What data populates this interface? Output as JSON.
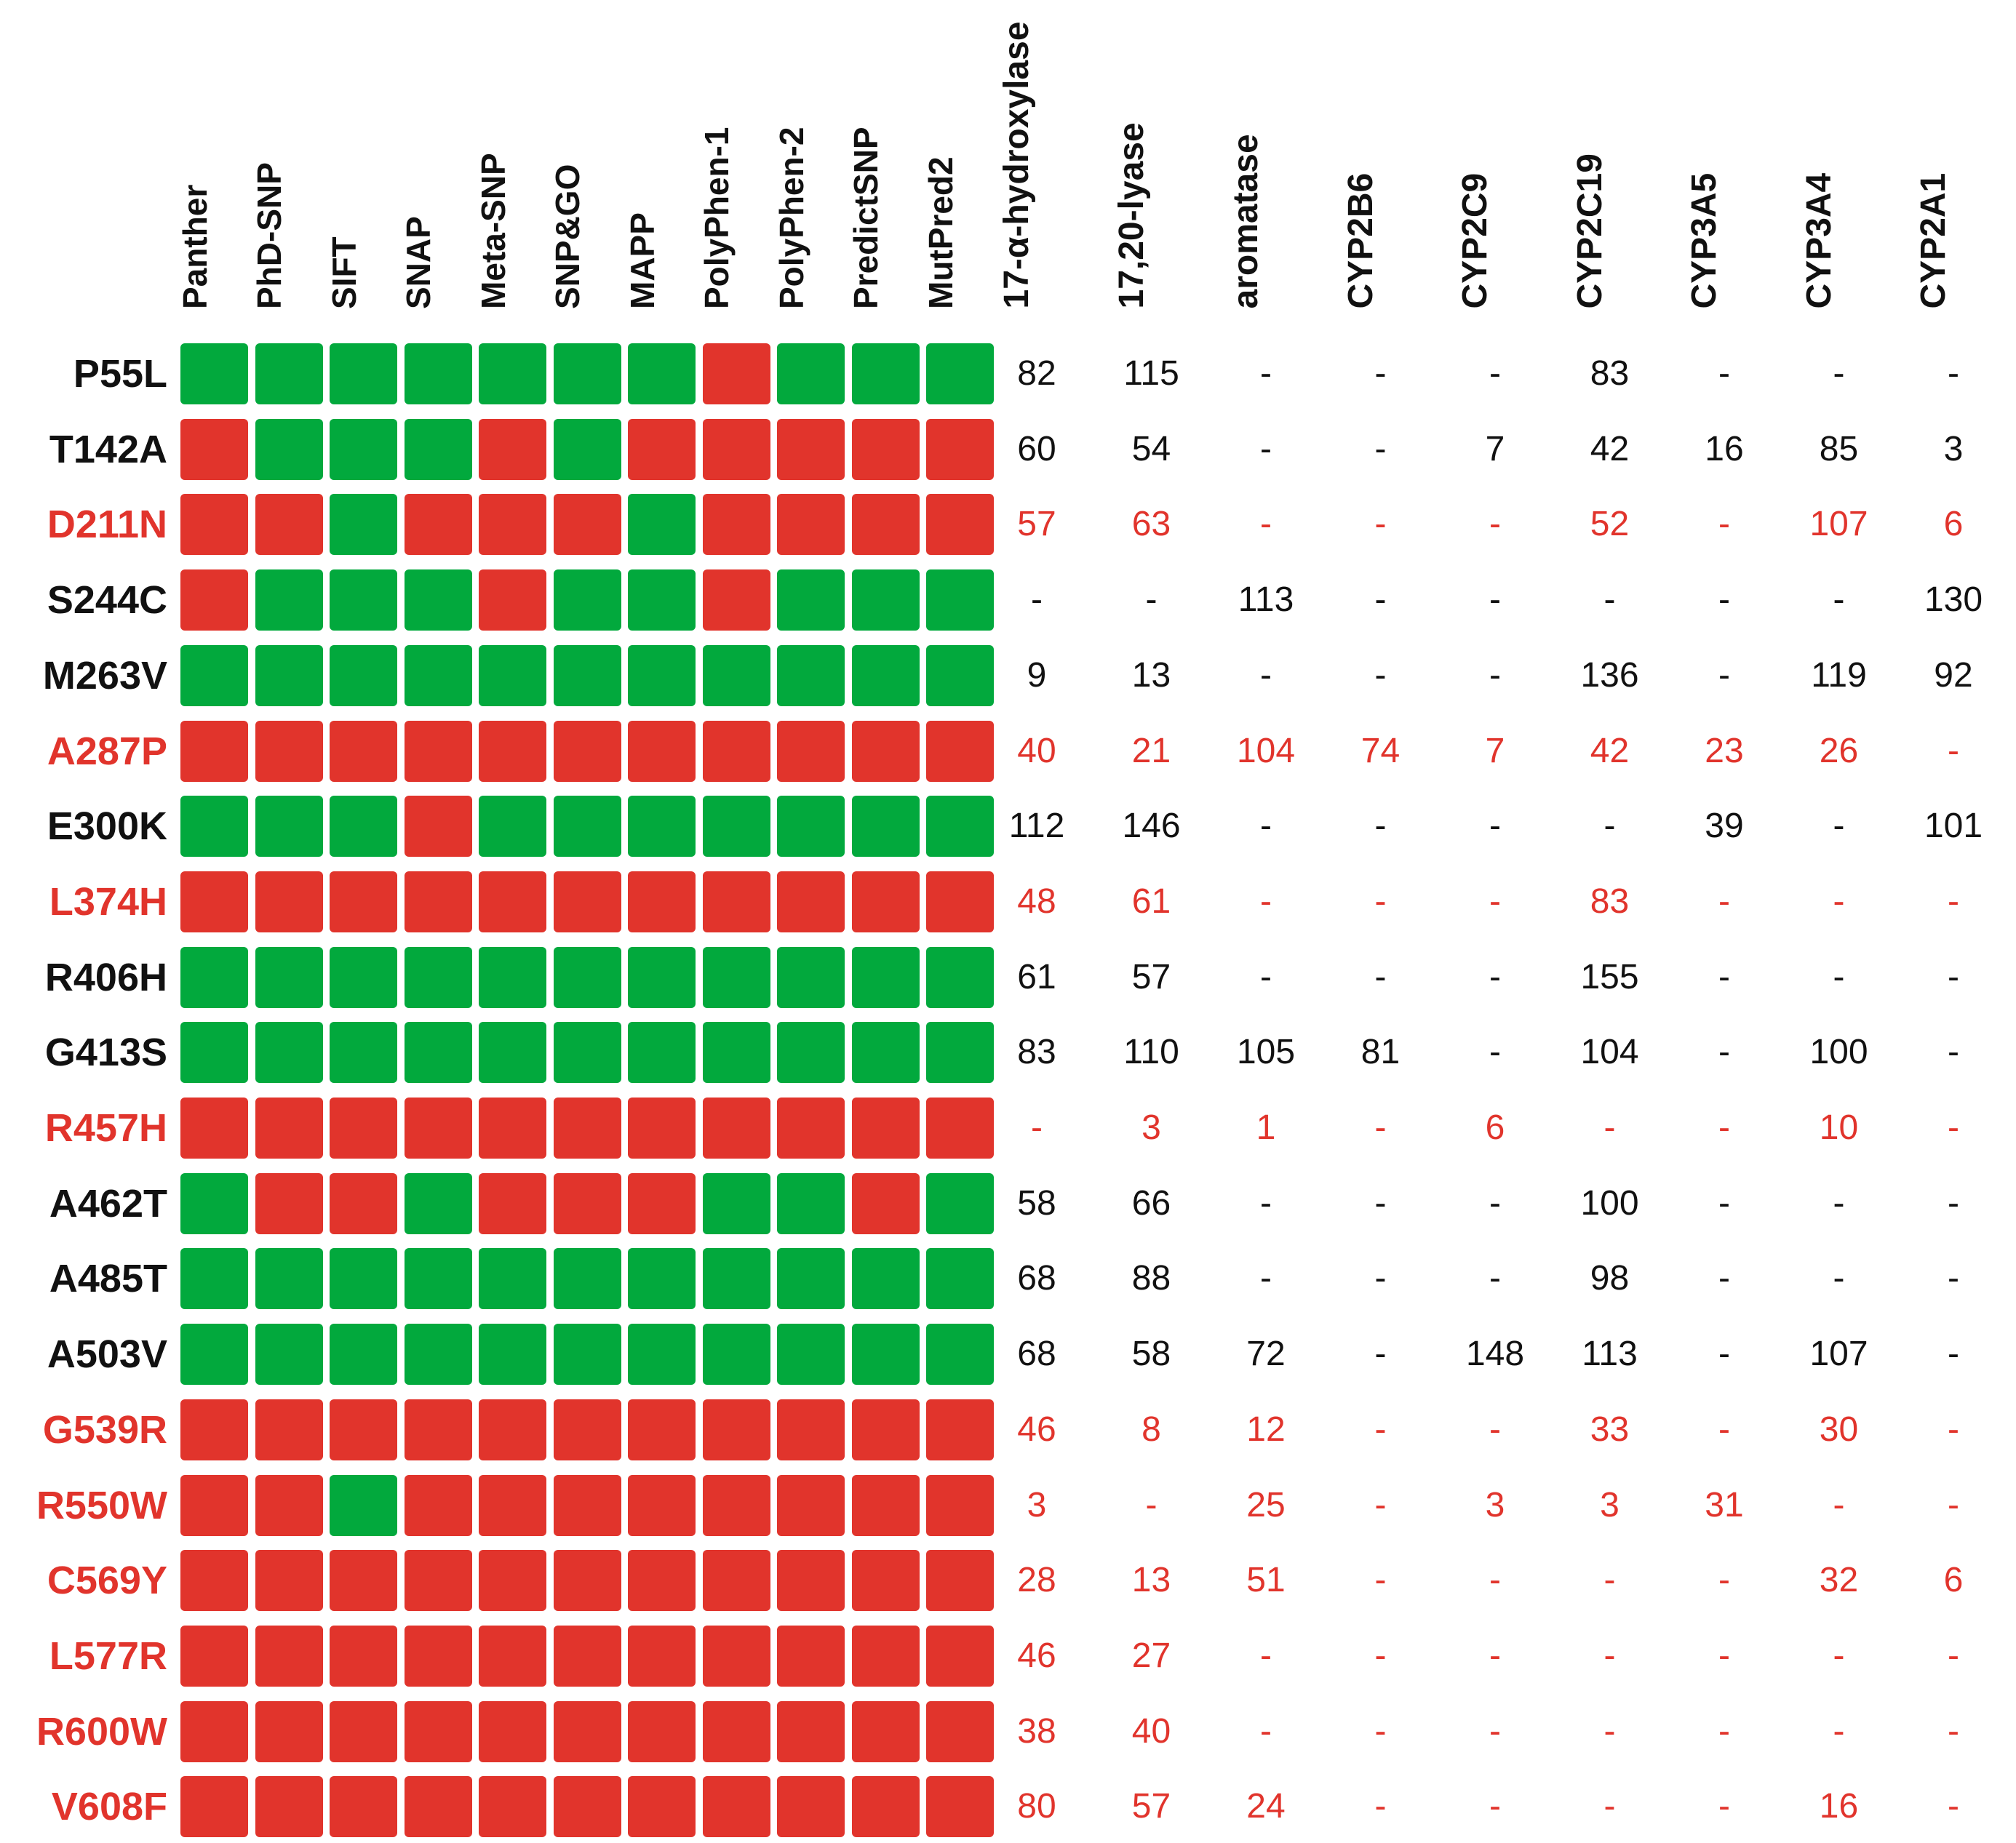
{
  "colors": {
    "deleterious": "#e1342c",
    "neutral": "#02a93d",
    "text": "#111111"
  },
  "predictors": [
    "Panther",
    "PhD-SNP",
    "SIFT",
    "SNAP",
    "Meta-SNP",
    "SNP&GO",
    "MAPP",
    "PolyPhen-1",
    "PolyPhen-2",
    "PredictSNP",
    "MutPred2"
  ],
  "activities": [
    "17-α-hydroxylase",
    "17,20-lyase",
    "aromatase",
    "CYP2B6",
    "CYP2C9",
    "CYP2C19",
    "CYP3A5",
    "CYP3A4",
    "CYP2A1"
  ],
  "rows": [
    {
      "label": "P55L",
      "red": false,
      "preds": "GGGGGGGRGGG",
      "values": [
        "82",
        "115",
        "-",
        "-",
        "-",
        "83",
        "-",
        "-",
        "-"
      ]
    },
    {
      "label": "T142A",
      "red": false,
      "preds": "RGGGRGRRRRR",
      "values": [
        "60",
        "54",
        "-",
        "-",
        "7",
        "42",
        "16",
        "85",
        "3"
      ]
    },
    {
      "label": "D211N",
      "red": true,
      "preds": "RRGRRRGRRRR",
      "values": [
        "57",
        "63",
        "-",
        "-",
        "-",
        "52",
        "-",
        "107",
        "6"
      ]
    },
    {
      "label": "S244C",
      "red": false,
      "preds": "RGGGRGGRGGG",
      "values": [
        "-",
        "-",
        "113",
        "-",
        "-",
        "-",
        "-",
        "-",
        "130"
      ]
    },
    {
      "label": "M263V",
      "red": false,
      "preds": "GGGGGGGGGGG",
      "values": [
        "9",
        "13",
        "-",
        "-",
        "-",
        "136",
        "-",
        "119",
        "92"
      ]
    },
    {
      "label": "A287P",
      "red": true,
      "preds": "RRRRRRRRRRR",
      "values": [
        "40",
        "21",
        "104",
        "74",
        "7",
        "42",
        "23",
        "26",
        "-"
      ]
    },
    {
      "label": "E300K",
      "red": false,
      "preds": "GGGRGGGGGGG",
      "values": [
        "112",
        "146",
        "-",
        "-",
        "-",
        "-",
        "39",
        "-",
        "101"
      ]
    },
    {
      "label": "L374H",
      "red": true,
      "preds": "RRRRRRRRRRR",
      "values": [
        "48",
        "61",
        "-",
        "-",
        "-",
        "83",
        "-",
        "-",
        "-"
      ]
    },
    {
      "label": "R406H",
      "red": false,
      "preds": "GGGGGGGGGGG",
      "values": [
        "61",
        "57",
        "-",
        "-",
        "-",
        "155",
        "-",
        "-",
        "-"
      ]
    },
    {
      "label": "G413S",
      "red": false,
      "preds": "GGGGGGGGGGG",
      "values": [
        "83",
        "110",
        "105",
        "81",
        "-",
        "104",
        "-",
        "100",
        "-"
      ]
    },
    {
      "label": "R457H",
      "red": true,
      "preds": "RRRRRRRRRRR",
      "values": [
        "-",
        "3",
        "1",
        "-",
        "6",
        "-",
        "-",
        "10",
        "-"
      ]
    },
    {
      "label": "A462T",
      "red": false,
      "preds": "GRRGRRRGGRG",
      "values": [
        "58",
        "66",
        "-",
        "-",
        "-",
        "100",
        "-",
        "-",
        "-"
      ]
    },
    {
      "label": "A485T",
      "red": false,
      "preds": "GGGGGGGGGGG",
      "values": [
        "68",
        "88",
        "-",
        "-",
        "-",
        "98",
        "-",
        "-",
        "-"
      ]
    },
    {
      "label": "A503V",
      "red": false,
      "preds": "GGGGGGGGGGG",
      "values": [
        "68",
        "58",
        "72",
        "-",
        "148",
        "113",
        "-",
        "107",
        "-"
      ]
    },
    {
      "label": "G539R",
      "red": true,
      "preds": "RRRRRRRRRRR",
      "values": [
        "46",
        "8",
        "12",
        "-",
        "-",
        "33",
        "-",
        "30",
        "-"
      ]
    },
    {
      "label": "R550W",
      "red": true,
      "preds": "RRGRRRRRRRR",
      "values": [
        "3",
        "-",
        "25",
        "-",
        "3",
        "3",
        "31",
        "-",
        "-"
      ]
    },
    {
      "label": "C569Y",
      "red": true,
      "preds": "RRRRRRRRRRR",
      "values": [
        "28",
        "13",
        "51",
        "-",
        "-",
        "-",
        "-",
        "32",
        "6"
      ]
    },
    {
      "label": "L577R",
      "red": true,
      "preds": "RRRRRRRRRRR",
      "values": [
        "46",
        "27",
        "-",
        "-",
        "-",
        "-",
        "-",
        "-",
        "-"
      ]
    },
    {
      "label": "R600W",
      "red": true,
      "preds": "RRRRRRRRRRR",
      "values": [
        "38",
        "40",
        "-",
        "-",
        "-",
        "-",
        "-",
        "-",
        "-"
      ]
    },
    {
      "label": "V608F",
      "red": true,
      "preds": "RRRRRRRRRRR",
      "values": [
        "80",
        "57",
        "24",
        "-",
        "-",
        "-",
        "-",
        "16",
        "-"
      ]
    }
  ]
}
